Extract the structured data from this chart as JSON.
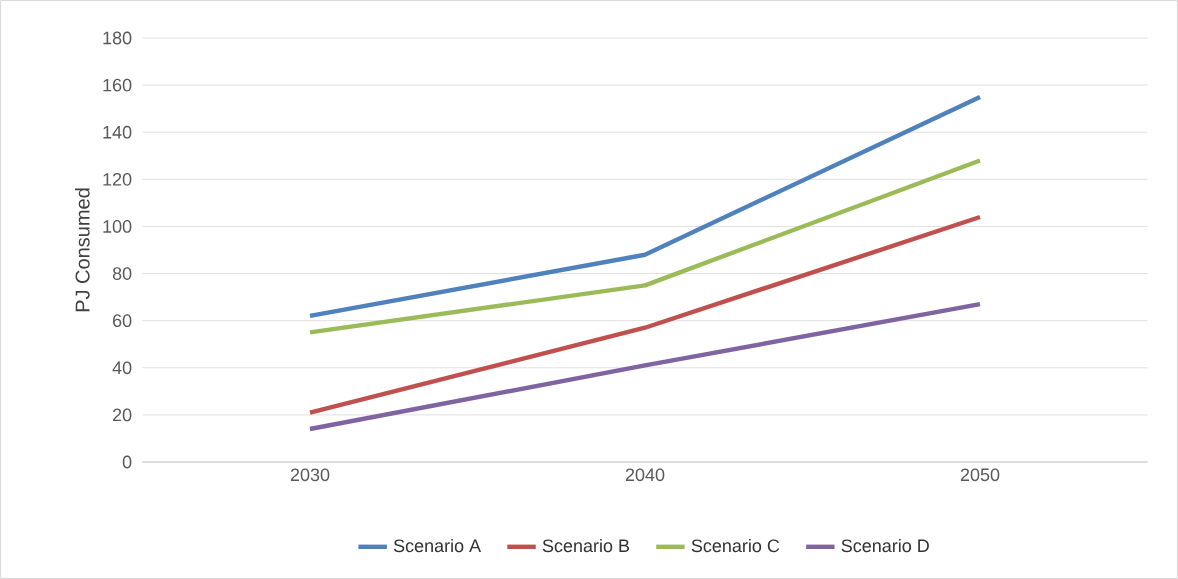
{
  "chart_data": {
    "type": "line",
    "ylabel": "PJ Consumed",
    "categories": [
      "2030",
      "2040",
      "2050"
    ],
    "series": [
      {
        "name": "Scenario A",
        "color": "#4f81bd",
        "values": [
          62,
          88,
          155
        ]
      },
      {
        "name": "Scenario B",
        "color": "#c0504d",
        "values": [
          21,
          57,
          104
        ]
      },
      {
        "name": "Scenario C",
        "color": "#9bbb59",
        "values": [
          55,
          75,
          128
        ]
      },
      {
        "name": "Scenario D",
        "color": "#8064a2",
        "values": [
          14,
          41,
          67
        ]
      }
    ],
    "ylim": [
      0,
      180
    ],
    "yticks": [
      0,
      20,
      40,
      60,
      80,
      100,
      120,
      140,
      160,
      180
    ],
    "grid": "y",
    "legend": "bottom",
    "marker": "none",
    "line_style": "solid"
  }
}
